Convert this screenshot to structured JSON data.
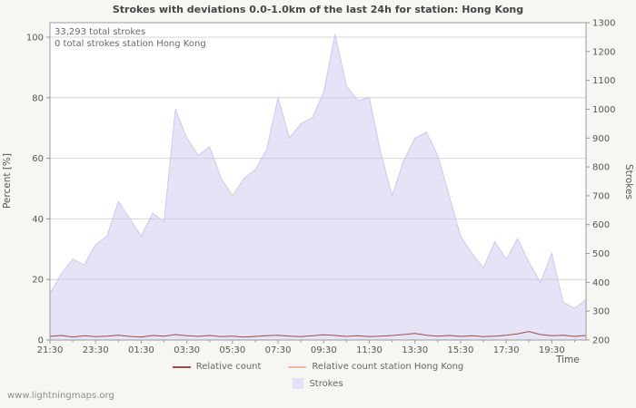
{
  "page": {
    "title": "Strokes with deviations 0.0-1.0km of the last 24h for station: Hong Kong",
    "watermark": "www.lightningmaps.org"
  },
  "annotations": {
    "total_strokes": "33,293 total strokes",
    "station_total": "0 total strokes station Hong Kong"
  },
  "axes": {
    "left_label": "Percent   [%]",
    "right_label": "Strokes",
    "x_label": "Time"
  },
  "legend": {
    "relative": {
      "label": "Relative count",
      "color": "#9e4a4a"
    },
    "station": {
      "label": "Relative count station Hong Kong",
      "color": "#f0b8a2"
    },
    "strokes": {
      "label": "Strokes",
      "color": "#e4e1f7"
    }
  },
  "chart_data": {
    "type": "area",
    "title": "Strokes with deviations 0.0-1.0km of the last 24h for station: Hong Kong",
    "x_start": "21:30",
    "x_step_minutes": 30,
    "x_tick_labels": [
      "21:30",
      "23:30",
      "01:30",
      "03:30",
      "05:30",
      "07:30",
      "09:30",
      "11:30",
      "13:30",
      "15:30",
      "17:30",
      "19:30"
    ],
    "x_tick_indices": [
      0,
      4,
      8,
      12,
      16,
      20,
      24,
      28,
      32,
      36,
      40,
      44
    ],
    "left_axis": {
      "label": "Percent [%]",
      "min": 0,
      "max": 100,
      "ticks": [
        0,
        20,
        40,
        60,
        80,
        100
      ]
    },
    "right_axis": {
      "label": "Strokes",
      "min": 200,
      "max": 1300,
      "ticks": [
        200,
        300,
        400,
        500,
        600,
        700,
        800,
        900,
        1000,
        1100,
        1200,
        1300
      ]
    },
    "grid_color": "#d4d4d4",
    "axis_color": "#999999",
    "series": [
      {
        "name": "Strokes",
        "style": "area",
        "axis": "right",
        "color": "#cdc8ef",
        "opacity": 0.5,
        "values": [
          360,
          430,
          480,
          460,
          530,
          560,
          680,
          620,
          560,
          640,
          610,
          1000,
          900,
          840,
          870,
          760,
          700,
          760,
          790,
          860,
          1040,
          900,
          950,
          970,
          1060,
          1260,
          1080,
          1030,
          1040,
          850,
          700,
          820,
          900,
          920,
          840,
          700,
          560,
          500,
          450,
          540,
          480,
          550,
          470,
          400,
          500,
          330,
          310,
          340
        ]
      },
      {
        "name": "Relative count",
        "style": "line",
        "axis": "left",
        "color": "#9e4a4a",
        "values": [
          1.2,
          1.5,
          1.0,
          1.4,
          1.1,
          1.3,
          1.6,
          1.2,
          1.0,
          1.5,
          1.3,
          1.8,
          1.4,
          1.2,
          1.5,
          1.1,
          1.3,
          1.0,
          1.2,
          1.4,
          1.6,
          1.3,
          1.1,
          1.4,
          1.7,
          1.5,
          1.2,
          1.4,
          1.1,
          1.3,
          1.5,
          1.8,
          2.2,
          1.6,
          1.3,
          1.5,
          1.2,
          1.4,
          1.1,
          1.3,
          1.6,
          2.0,
          2.8,
          1.8,
          1.4,
          1.6,
          1.2,
          1.5
        ]
      },
      {
        "name": "Relative count station Hong Kong",
        "style": "line",
        "axis": "left",
        "color": "#f0b8a2",
        "values_constant": 0
      }
    ]
  }
}
